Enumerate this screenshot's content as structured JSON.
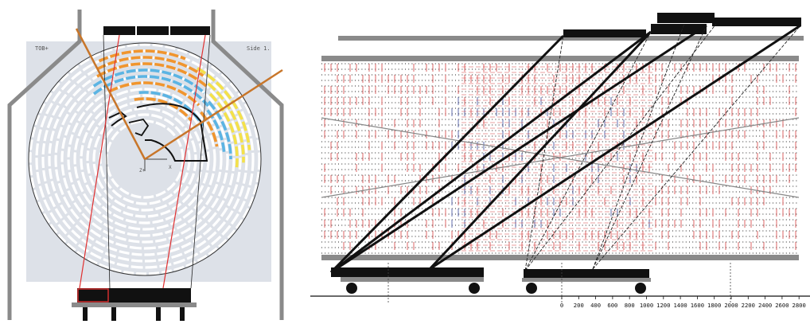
{
  "left_panel": {
    "corner_label_left": "TOB+",
    "corner_label_right": "Side 1.",
    "origin_label": "Z+",
    "x_axis_label": "X",
    "colors": {
      "background": "#dde1e8",
      "bars_white": "#ffffff",
      "bars_orange": "#f0952e",
      "bars_blue": "#5bb4e3",
      "bars_yellow": "#f4e14a",
      "frame": "#7a7a7a",
      "beam": "#c8762a",
      "red_line": "#e03030"
    }
  },
  "right_panel": {
    "axis_ticks": [
      "0",
      "200",
      "400",
      "600",
      "800",
      "1000",
      "1200",
      "1400",
      "1600",
      "1800",
      "2000",
      "2200",
      "2400",
      "2600",
      "2800"
    ],
    "colors": {
      "grid_vertical_red": "#d44040",
      "grid_vertical_blue": "#3a4a9a",
      "grid_dots": "#222222",
      "thick_lines": "#111111",
      "rails": "#8a8a8a"
    }
  }
}
